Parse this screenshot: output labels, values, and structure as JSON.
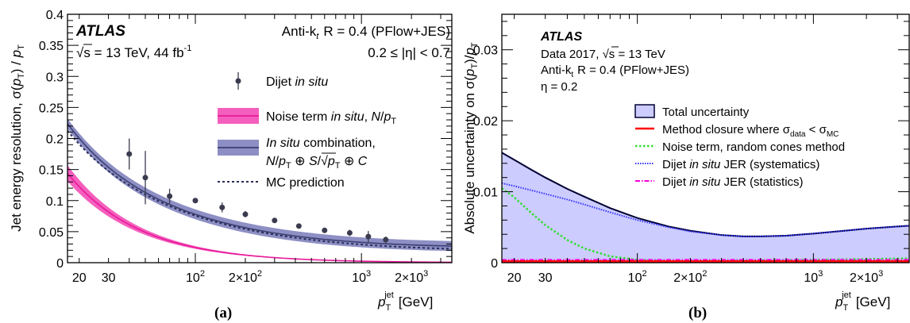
{
  "chart_data": [
    {
      "type": "line",
      "panel_label": "(a)",
      "xlabel_main": "p",
      "xlabel_sub": "T",
      "xlabel_sup": "jet",
      "xlabel_unit": "[GeV]",
      "xscale": "log",
      "xlim": [
        17,
        3500
      ],
      "ylim": [
        0,
        0.4
      ],
      "ylabel": "Jet energy resolution, σ(p_T) / p_T",
      "ylabel_parts": {
        "pre": "Jet energy resolution, σ(",
        "p": "p",
        "t1": "T",
        "mid": ") / ",
        "p2": "p",
        "t2": "T"
      },
      "x_tick_labels": [
        {
          "x": 20,
          "label": "20"
        },
        {
          "x": 30,
          "label": "30"
        },
        {
          "x": 100,
          "label": "10",
          "sup": "2"
        },
        {
          "x": 200,
          "label": "2×10",
          "sup": "2"
        },
        {
          "x": 1000,
          "label": "10",
          "sup": "3"
        },
        {
          "x": 2000,
          "label": "2×10",
          "sup": "3"
        }
      ],
      "y_ticks": [
        {
          "v": 0,
          "label": "0"
        },
        {
          "v": 0.05,
          "label": "0.05"
        },
        {
          "v": 0.1,
          "label": "0.1"
        },
        {
          "v": 0.15,
          "label": "0.15"
        },
        {
          "v": 0.2,
          "label": "0.2"
        },
        {
          "v": 0.25,
          "label": "0.25"
        },
        {
          "v": 0.3,
          "label": "0.3"
        },
        {
          "v": 0.35,
          "label": "0.35"
        },
        {
          "v": 0.4,
          "label": "0.4"
        }
      ],
      "annotations": {
        "atlas": "ATLAS",
        "sqrt_s": "s = 13 TeV, 44 fb",
        "lumi_sup": "-1",
        "algo_pre": "Anti-k",
        "algo_sub": "t",
        "algo_rest": "R = 0.4 (PFlow+JES)",
        "eta_range": "0.2 ≤ |η| < 0.7"
      },
      "legend": {
        "dijet": "Dijet in situ",
        "noise": "Noise term in situ, N/p",
        "combo_line1": "In situ combination,",
        "combo_line2": "N/p ⊕ S/√p ⊕ C",
        "mc": "MC prediction"
      },
      "series": [
        {
          "name": "Dijet in situ",
          "kind": "points",
          "color": "#3b3b4f",
          "x": [
            40,
            50,
            70,
            100,
            145,
            200,
            300,
            420,
            600,
            850,
            1100,
            1400
          ],
          "y": [
            0.175,
            0.137,
            0.107,
            0.1,
            0.089,
            0.078,
            0.068,
            0.059,
            0.052,
            0.048,
            0.042,
            0.037
          ],
          "yerr": [
            0.025,
            0.043,
            0.012,
            0.004,
            0.008,
            0.005,
            0.004,
            0.004,
            0.004,
            0.005,
            0.009,
            0.005
          ]
        },
        {
          "name": "Noise term in situ, N/p_T",
          "kind": "band",
          "color": "#e8199a",
          "fill": "#f45fbd",
          "N": 2.45,
          "N_band": 0.22
        },
        {
          "name": "In situ combination, N/p_T ⊕ S/√p_T ⊕ C",
          "kind": "band",
          "color": "#3b3f72",
          "fill": "#8d8fc4",
          "N": 2.45,
          "S": 0.7,
          "C": 0.024,
          "band": 0.008
        },
        {
          "name": "MC prediction",
          "kind": "dashed",
          "color": "#2a2d55",
          "N": 2.15,
          "S": 0.7,
          "C": 0.019
        }
      ]
    },
    {
      "type": "area",
      "panel_label": "(b)",
      "xlabel_main": "p",
      "xlabel_sub": "T",
      "xlabel_sup": "jet",
      "xlabel_unit": "[GeV]",
      "xscale": "log",
      "xlim": [
        17,
        3500
      ],
      "ylim": [
        0,
        0.035
      ],
      "ylabel_parts": {
        "pre": "Absolute uncertainty on σ(",
        "p": "p",
        "t1": "T",
        "mid": ")/",
        "p2": "p",
        "t2": "T"
      },
      "x_tick_labels": [
        {
          "x": 20,
          "label": "20"
        },
        {
          "x": 30,
          "label": "30"
        },
        {
          "x": 100,
          "label": "10",
          "sup": "2"
        },
        {
          "x": 200,
          "label": "2×10",
          "sup": "2"
        },
        {
          "x": 1000,
          "label": "10",
          "sup": "3"
        },
        {
          "x": 2000,
          "label": "2×10",
          "sup": "3"
        }
      ],
      "y_ticks": [
        {
          "v": 0,
          "label": "0"
        },
        {
          "v": 0.01,
          "label": "0.01"
        },
        {
          "v": 0.02,
          "label": "0.02"
        },
        {
          "v": 0.03,
          "label": "0.03"
        }
      ],
      "annotations": {
        "atlas": "ATLAS",
        "data": "Data 2017, ",
        "sqrt_s": "s = 13 TeV",
        "algo_pre": "Anti-k",
        "algo_sub": "t",
        "algo_rest": "R = 0.4 (PFlow+JES)",
        "eta": "η = 0.2"
      },
      "legend": {
        "total": "Total uncertainty",
        "closure_pre": "Method closure where σ",
        "closure_sub1": "data",
        "closure_mid": " < σ",
        "closure_sub2": "MC",
        "noise": "Noise term, random cones method",
        "sys_pre": "Dijet ",
        "sys_it": "in situ",
        "sys_post": " JER (systematics)",
        "stat_pre": "Dijet ",
        "stat_it": "in situ",
        "stat_post": " JER (statistics)"
      },
      "series": [
        {
          "name": "Total uncertainty",
          "kind": "filled-line",
          "color": "#000033",
          "fill": "#ccccff",
          "x": [
            17,
            20,
            25,
            30,
            40,
            50,
            70,
            100,
            150,
            200,
            300,
            400,
            500,
            700,
            1000,
            1500,
            2000,
            3000,
            3500
          ],
          "y": [
            0.0155,
            0.0145,
            0.0131,
            0.012,
            0.0104,
            0.0093,
            0.0077,
            0.0063,
            0.0051,
            0.0045,
            0.0039,
            0.0037,
            0.0037,
            0.0038,
            0.0041,
            0.0045,
            0.0048,
            0.0051,
            0.0052
          ]
        },
        {
          "name": "Method closure",
          "kind": "line",
          "color": "#ff0000",
          "x": [
            17,
            3500
          ],
          "y": [
            0.0002,
            0.0002
          ]
        },
        {
          "name": "Noise term, random cones method",
          "kind": "dotted",
          "color": "#33dd33",
          "x": [
            17,
            20,
            25,
            30,
            40,
            50,
            70,
            100,
            150,
            200,
            500,
            1000,
            3500
          ],
          "y": [
            0.0105,
            0.0092,
            0.007,
            0.0053,
            0.0032,
            0.002,
            0.0009,
            0.0004,
            0.0002,
            0.0002,
            0.0003,
            0.0004,
            0.0006
          ]
        },
        {
          "name": "Dijet in situ JER (systematics)",
          "kind": "fine-dotted",
          "color": "#3333ff",
          "x": [
            17,
            20,
            25,
            30,
            40,
            50,
            70,
            100,
            150,
            200,
            300,
            400,
            500,
            700,
            1000,
            1500,
            2000,
            3000,
            3500
          ],
          "y": [
            0.0112,
            0.0108,
            0.0102,
            0.0097,
            0.0089,
            0.0082,
            0.0071,
            0.006,
            0.005,
            0.0044,
            0.0039,
            0.0037,
            0.0037,
            0.0038,
            0.0041,
            0.0045,
            0.0048,
            0.0051,
            0.0052
          ]
        },
        {
          "name": "Dijet in situ JER (statistics)",
          "kind": "dash-dot",
          "color": "#ff00dd",
          "x": [
            17,
            3500
          ],
          "y": [
            0.0004,
            0.0004
          ]
        }
      ]
    }
  ]
}
